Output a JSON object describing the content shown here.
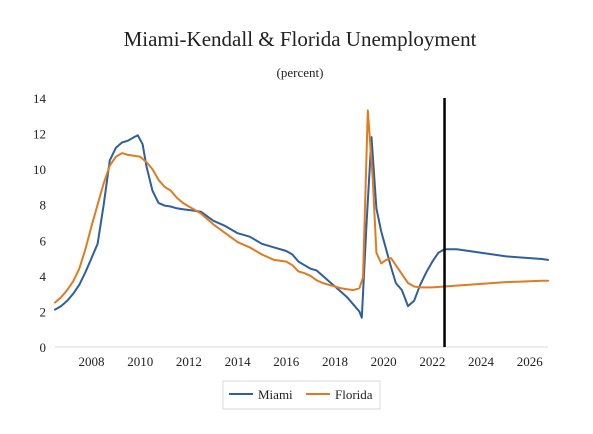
{
  "chart_data": {
    "type": "line",
    "title": "Miami-Kendall & Florida Unemployment",
    "subtitle": "(percent)",
    "xlim": [
      2006.5,
      2026.75
    ],
    "ylim": [
      0,
      14
    ],
    "y_ticks": [
      0,
      2,
      4,
      6,
      8,
      10,
      12,
      14
    ],
    "x_ticks": [
      2008,
      2010,
      2012,
      2014,
      2016,
      2018,
      2020,
      2022,
      2024,
      2026
    ],
    "grid": false,
    "legend_position": "bottom",
    "forecast_marker_x": 2022.5,
    "series": [
      {
        "name": "Miami",
        "color": "#2e5f9e",
        "points": [
          [
            2006.5,
            2.1
          ],
          [
            2006.75,
            2.3
          ],
          [
            2007.0,
            2.6
          ],
          [
            2007.25,
            3.0
          ],
          [
            2007.5,
            3.5
          ],
          [
            2007.75,
            4.2
          ],
          [
            2008.0,
            5.0
          ],
          [
            2008.25,
            5.8
          ],
          [
            2008.5,
            8.0
          ],
          [
            2008.75,
            10.5
          ],
          [
            2009.0,
            11.2
          ],
          [
            2009.25,
            11.5
          ],
          [
            2009.5,
            11.6
          ],
          [
            2009.75,
            11.8
          ],
          [
            2009.9,
            11.9
          ],
          [
            2010.1,
            11.4
          ],
          [
            2010.25,
            10.2
          ],
          [
            2010.5,
            8.8
          ],
          [
            2010.75,
            8.1
          ],
          [
            2011.0,
            7.95
          ],
          [
            2011.25,
            7.9
          ],
          [
            2011.5,
            7.8
          ],
          [
            2011.75,
            7.75
          ],
          [
            2012.0,
            7.7
          ],
          [
            2012.5,
            7.6
          ],
          [
            2013.0,
            7.1
          ],
          [
            2013.5,
            6.8
          ],
          [
            2014.0,
            6.4
          ],
          [
            2014.5,
            6.2
          ],
          [
            2015.0,
            5.8
          ],
          [
            2015.5,
            5.6
          ],
          [
            2016.0,
            5.4
          ],
          [
            2016.25,
            5.2
          ],
          [
            2016.5,
            4.8
          ],
          [
            2016.75,
            4.6
          ],
          [
            2017.0,
            4.4
          ],
          [
            2017.25,
            4.3
          ],
          [
            2017.5,
            4.0
          ],
          [
            2017.75,
            3.7
          ],
          [
            2018.0,
            3.4
          ],
          [
            2018.25,
            3.1
          ],
          [
            2018.5,
            2.8
          ],
          [
            2018.75,
            2.4
          ],
          [
            2019.0,
            2.0
          ],
          [
            2019.1,
            1.65
          ],
          [
            2019.3,
            7.0
          ],
          [
            2019.5,
            11.8
          ],
          [
            2019.7,
            7.8
          ],
          [
            2019.9,
            6.5
          ],
          [
            2020.1,
            5.5
          ],
          [
            2020.3,
            4.5
          ],
          [
            2020.5,
            3.6
          ],
          [
            2020.75,
            3.2
          ],
          [
            2021.0,
            2.3
          ],
          [
            2021.25,
            2.6
          ],
          [
            2021.5,
            3.5
          ],
          [
            2021.75,
            4.2
          ],
          [
            2022.0,
            4.8
          ],
          [
            2022.25,
            5.3
          ],
          [
            2022.5,
            5.5
          ],
          [
            2023.0,
            5.5
          ],
          [
            2023.5,
            5.4
          ],
          [
            2024.0,
            5.3
          ],
          [
            2024.5,
            5.2
          ],
          [
            2025.0,
            5.1
          ],
          [
            2025.5,
            5.05
          ],
          [
            2026.0,
            5.0
          ],
          [
            2026.5,
            4.95
          ],
          [
            2026.75,
            4.9
          ]
        ]
      },
      {
        "name": "Florida",
        "color": "#e07b1f",
        "points": [
          [
            2006.5,
            2.5
          ],
          [
            2006.75,
            2.8
          ],
          [
            2007.0,
            3.2
          ],
          [
            2007.25,
            3.7
          ],
          [
            2007.5,
            4.4
          ],
          [
            2007.75,
            5.5
          ],
          [
            2008.0,
            6.8
          ],
          [
            2008.25,
            8.0
          ],
          [
            2008.5,
            9.2
          ],
          [
            2008.75,
            10.2
          ],
          [
            2009.0,
            10.7
          ],
          [
            2009.25,
            10.9
          ],
          [
            2009.5,
            10.8
          ],
          [
            2009.75,
            10.75
          ],
          [
            2010.0,
            10.7
          ],
          [
            2010.25,
            10.4
          ],
          [
            2010.5,
            10.0
          ],
          [
            2010.75,
            9.4
          ],
          [
            2011.0,
            9.0
          ],
          [
            2011.25,
            8.8
          ],
          [
            2011.5,
            8.4
          ],
          [
            2011.75,
            8.1
          ],
          [
            2012.0,
            7.9
          ],
          [
            2012.5,
            7.5
          ],
          [
            2013.0,
            6.9
          ],
          [
            2013.5,
            6.4
          ],
          [
            2014.0,
            5.9
          ],
          [
            2014.5,
            5.6
          ],
          [
            2015.0,
            5.2
          ],
          [
            2015.5,
            4.9
          ],
          [
            2016.0,
            4.8
          ],
          [
            2016.25,
            4.6
          ],
          [
            2016.5,
            4.25
          ],
          [
            2016.75,
            4.15
          ],
          [
            2017.0,
            4.0
          ],
          [
            2017.25,
            3.75
          ],
          [
            2017.5,
            3.6
          ],
          [
            2017.75,
            3.5
          ],
          [
            2018.0,
            3.4
          ],
          [
            2018.25,
            3.3
          ],
          [
            2018.5,
            3.25
          ],
          [
            2018.75,
            3.2
          ],
          [
            2019.0,
            3.3
          ],
          [
            2019.15,
            3.9
          ],
          [
            2019.35,
            13.3
          ],
          [
            2019.55,
            9.5
          ],
          [
            2019.7,
            5.3
          ],
          [
            2019.9,
            4.7
          ],
          [
            2020.1,
            4.9
          ],
          [
            2020.3,
            5.0
          ],
          [
            2020.5,
            4.6
          ],
          [
            2020.75,
            4.1
          ],
          [
            2021.0,
            3.6
          ],
          [
            2021.25,
            3.4
          ],
          [
            2021.5,
            3.35
          ],
          [
            2021.75,
            3.35
          ],
          [
            2022.0,
            3.35
          ],
          [
            2022.5,
            3.4
          ],
          [
            2023.0,
            3.45
          ],
          [
            2023.5,
            3.5
          ],
          [
            2024.0,
            3.55
          ],
          [
            2024.5,
            3.6
          ],
          [
            2025.0,
            3.65
          ],
          [
            2025.5,
            3.67
          ],
          [
            2026.0,
            3.7
          ],
          [
            2026.5,
            3.72
          ],
          [
            2026.75,
            3.72
          ]
        ]
      }
    ]
  }
}
